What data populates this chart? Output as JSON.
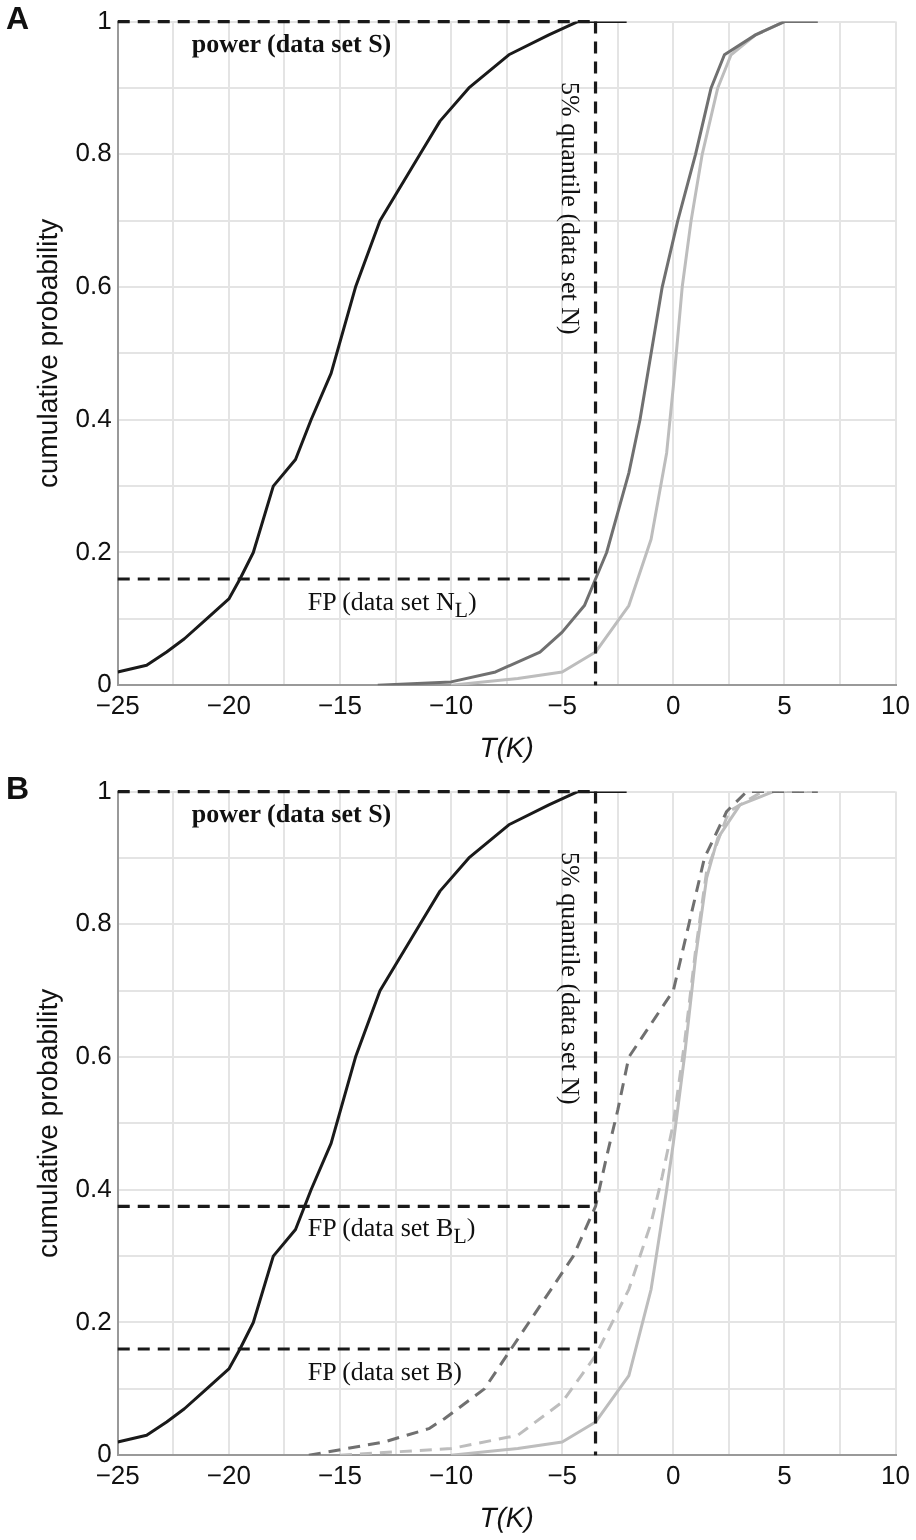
{
  "chart_data": [
    {
      "type": "line",
      "title": "A",
      "xlabel": "T(K)",
      "ylabel": "cumulative probability",
      "xlim": [
        -25,
        10
      ],
      "ylim": [
        0,
        1
      ],
      "xticks": [
        -25,
        {
          "value": -22.5,
          "label": null
        },
        -20,
        {
          "value": -17.5,
          "label": null
        },
        -15,
        {
          "value": -12.5,
          "label": null
        },
        -10,
        {
          "value": -7.5,
          "label": null
        },
        -5,
        {
          "value": -2.5,
          "label": null
        },
        0,
        {
          "value": 2.5,
          "label": null
        },
        5,
        {
          "value": 7.5,
          "label": null
        },
        10
      ],
      "yticks": [
        0,
        {
          "value": 0.1,
          "label": null
        },
        0.2,
        {
          "value": 0.3,
          "label": null
        },
        0.4,
        {
          "value": 0.5,
          "label": null
        },
        0.6,
        {
          "value": 0.7,
          "label": null
        },
        0.8,
        {
          "value": 0.9,
          "label": null
        },
        1
      ],
      "grid": true,
      "legend": false,
      "marker": "none",
      "series": [
        {
          "color": "#1a1a1a",
          "line_style": "solid",
          "x": [
            -25,
            -23.7,
            -22.8,
            -22,
            -21,
            -20,
            -19.5,
            -18.9,
            -18,
            -17,
            -16.3,
            -15.4,
            -14.3,
            -13.2,
            -11.4,
            -10.5,
            -9.2,
            -7.4,
            -5.6,
            -4.3,
            -2.1
          ],
          "values": [
            0.02,
            0.03,
            0.05,
            0.07,
            0.1,
            0.13,
            0.16,
            0.2,
            0.3,
            0.34,
            0.4,
            0.47,
            0.6,
            0.7,
            0.8,
            0.85,
            0.9,
            0.95,
            0.98,
            1,
            1
          ]
        },
        {
          "color": "#707070",
          "line_style": "solid",
          "x": [
            -13.3,
            -10,
            -8,
            -6,
            -5,
            -4,
            -3.5,
            -3,
            -2,
            -1.5,
            -1,
            -0.5,
            0.2,
            1,
            1.7,
            2.3,
            3.7,
            5,
            6.5
          ],
          "values": [
            0,
            0.005,
            0.02,
            0.05,
            0.08,
            0.12,
            0.16,
            0.2,
            0.32,
            0.4,
            0.5,
            0.6,
            0.7,
            0.8,
            0.9,
            0.95,
            0.98,
            1,
            1
          ]
        },
        {
          "color": "#bdbdbd",
          "line_style": "solid",
          "x": [
            -10,
            -7,
            -5,
            -3.5,
            -2,
            -1,
            -0.3,
            0,
            0.4,
            0.8,
            1.3,
            2,
            2.6,
            3.7,
            5,
            6.5
          ],
          "values": [
            0,
            0.01,
            0.02,
            0.05,
            0.12,
            0.22,
            0.35,
            0.45,
            0.6,
            0.7,
            0.8,
            0.9,
            0.95,
            0.98,
            1,
            1
          ]
        }
      ],
      "ref_lines": [
        {
          "axis": "x",
          "value": -3.5,
          "label": "5% quantile (data set N)",
          "line_style": "dashed",
          "color": "#1a1a1a"
        },
        {
          "axis": "y",
          "value": 1,
          "label": "power (data set S)",
          "line_style": "dashed",
          "color": "#1a1a1a"
        },
        {
          "axis": "y",
          "value": 0.16,
          "label": "FP (data set N$_{L}$)",
          "line_style": "dashed",
          "color": "#1a1a1a"
        }
      ]
    },
    {
      "type": "line",
      "title": "B",
      "xlabel": "T(K)",
      "ylabel": "cumulative probability",
      "xlim": [
        -25,
        10
      ],
      "ylim": [
        0,
        1
      ],
      "xticks": [
        -25,
        {
          "value": -22.5,
          "label": null
        },
        -20,
        {
          "value": -17.5,
          "label": null
        },
        -15,
        {
          "value": -12.5,
          "label": null
        },
        -10,
        {
          "value": -7.5,
          "label": null
        },
        -5,
        {
          "value": -2.5,
          "label": null
        },
        0,
        {
          "value": 2.5,
          "label": null
        },
        5,
        {
          "value": 7.5,
          "label": null
        },
        10
      ],
      "yticks": [
        0,
        {
          "value": 0.1,
          "label": null
        },
        0.2,
        {
          "value": 0.3,
          "label": null
        },
        0.4,
        {
          "value": 0.5,
          "label": null
        },
        0.6,
        {
          "value": 0.7,
          "label": null
        },
        0.8,
        {
          "value": 0.9,
          "label": null
        },
        1
      ],
      "grid": true,
      "legend": false,
      "marker": "none",
      "series": [
        {
          "color": "#1a1a1a",
          "line_style": "solid",
          "x": [
            -25,
            -23.7,
            -22.8,
            -22,
            -21,
            -20,
            -19.5,
            -18.9,
            -18,
            -17,
            -16.3,
            -15.4,
            -14.3,
            -13.2,
            -11.4,
            -10.5,
            -9.2,
            -7.4,
            -5.6,
            -4.3,
            -2.1
          ],
          "values": [
            0.02,
            0.03,
            0.05,
            0.07,
            0.1,
            0.13,
            0.16,
            0.2,
            0.3,
            0.34,
            0.4,
            0.47,
            0.6,
            0.7,
            0.8,
            0.85,
            0.9,
            0.95,
            0.98,
            1,
            1
          ]
        },
        {
          "color": "#707070",
          "line_style": "dashed",
          "x": [
            -16.4,
            -13,
            -11,
            -10.3,
            -8.5,
            -7.5,
            -6.5,
            -5.5,
            -4.5,
            -3.5,
            -3,
            -2.5,
            -2,
            -1,
            0,
            0.7,
            1.4,
            2.4,
            3.3,
            6.5
          ],
          "values": [
            0,
            0.02,
            0.04,
            0.055,
            0.1,
            0.15,
            0.2,
            0.25,
            0.3,
            0.375,
            0.45,
            0.52,
            0.6,
            0.65,
            0.7,
            0.8,
            0.9,
            0.97,
            1,
            1
          ]
        },
        {
          "color": "#bdbdbd",
          "line_style": "dashed",
          "x": [
            -15,
            -10,
            -7,
            -5,
            -3.5,
            -2,
            -1,
            -0.5,
            0,
            0.5,
            1,
            1.5,
            2.5,
            4,
            6.5
          ],
          "values": [
            0,
            0.01,
            0.03,
            0.08,
            0.15,
            0.25,
            0.35,
            0.42,
            0.5,
            0.62,
            0.76,
            0.88,
            0.97,
            1,
            1
          ]
        },
        {
          "color": "#bdbdbd",
          "line_style": "solid",
          "x": [
            -10,
            -7,
            -5,
            -3.5,
            -2,
            -1,
            -0.3,
            0,
            0.5,
            1,
            1.5,
            2,
            3,
            4.5,
            6.5
          ],
          "values": [
            0,
            0.01,
            0.02,
            0.05,
            0.12,
            0.25,
            0.4,
            0.47,
            0.6,
            0.75,
            0.87,
            0.93,
            0.98,
            1,
            1
          ]
        }
      ],
      "ref_lines": [
        {
          "axis": "x",
          "value": -3.5,
          "label": "5% quantile (data set N)",
          "line_style": "dashed",
          "color": "#1a1a1a"
        },
        {
          "axis": "y",
          "value": 1,
          "label": "power (data set S)",
          "line_style": "dashed",
          "color": "#1a1a1a"
        },
        {
          "axis": "y",
          "value": 0.375,
          "label": "FP (data set B$_{L}$)",
          "line_style": "dashed",
          "color": "#1a1a1a"
        },
        {
          "axis": "y",
          "value": 0.16,
          "label": "FP (data set B)",
          "line_style": "dashed",
          "color": "#1a1a1a"
        }
      ]
    }
  ]
}
